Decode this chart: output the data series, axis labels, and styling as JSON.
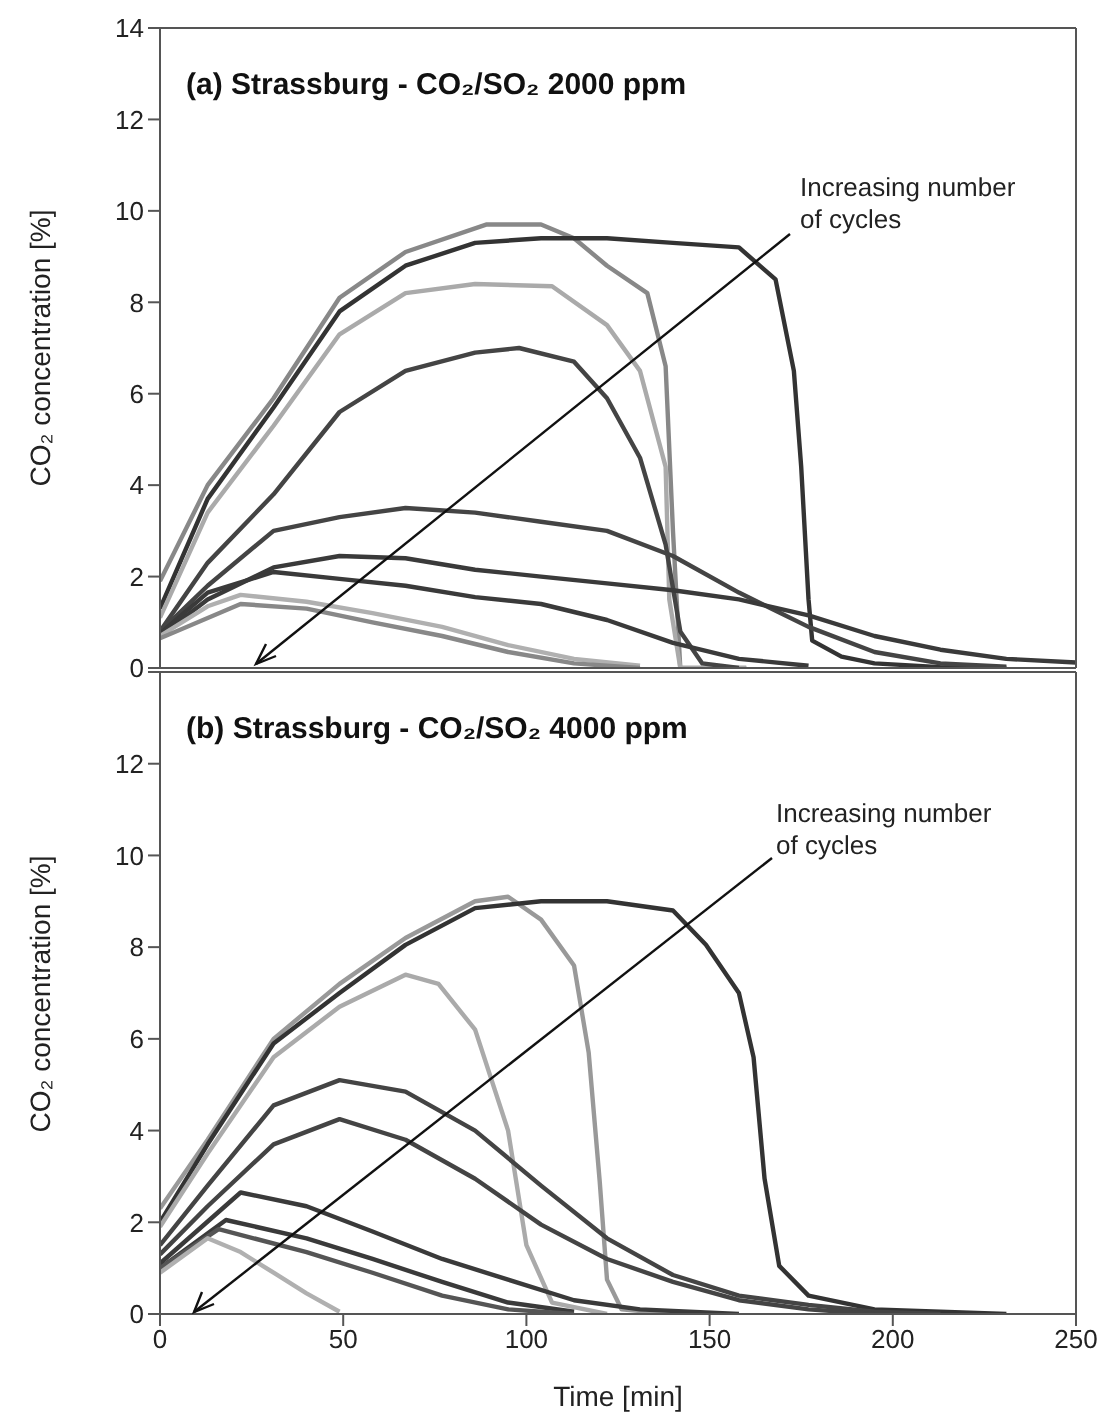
{
  "chart_data": [
    {
      "type": "line",
      "title": "(a) Strassburg - CO₂/SO₂ 2000 ppm",
      "ylabel": "CO₂ concentration [%]",
      "annotations": [
        "Increasing number of cycles"
      ],
      "xlim": [
        0,
        250
      ],
      "xticks": [
        0,
        50,
        100,
        150,
        200,
        250
      ],
      "ylim": [
        0,
        14
      ],
      "yticks": [
        0,
        2,
        4,
        6,
        8,
        10,
        12,
        14
      ],
      "tick_labels": "y",
      "marker": "none",
      "line_style": "solid",
      "series": [
        {
          "color": "#888888",
          "x": [
            0,
            13,
            31,
            49,
            67,
            89,
            104,
            113,
            122,
            133,
            138,
            140,
            142,
            160
          ],
          "values": [
            1.9,
            4,
            5.9,
            8.1,
            9.1,
            9.7,
            9.7,
            9.4,
            8.8,
            8.2,
            6.6,
            3,
            0,
            0
          ]
        },
        {
          "color": "#333333",
          "x": [
            0,
            13,
            31,
            49,
            67,
            86,
            104,
            122,
            140,
            158,
            168,
            173,
            175,
            177,
            178,
            186,
            195,
            213,
            231
          ],
          "values": [
            1.3,
            3.7,
            5.7,
            7.8,
            8.8,
            9.3,
            9.4,
            9.4,
            9.3,
            9.2,
            8.5,
            6.5,
            4.4,
            1.5,
            0.6,
            0.25,
            0.1,
            0.02,
            0
          ]
        },
        {
          "color": "#aaaaaa",
          "x": [
            0,
            13,
            31,
            49,
            67,
            86,
            107,
            122,
            131,
            138,
            139,
            142,
            160
          ],
          "values": [
            1.1,
            3.4,
            5.3,
            7.3,
            8.2,
            8.4,
            8.35,
            7.5,
            6.5,
            4.4,
            1.5,
            0,
            0
          ]
        },
        {
          "color": "#444444",
          "x": [
            0,
            13,
            31,
            49,
            67,
            86,
            98,
            113,
            122,
            131,
            138,
            142,
            148,
            158
          ],
          "values": [
            0.8,
            2.3,
            3.8,
            5.6,
            6.5,
            6.9,
            7,
            6.7,
            5.9,
            4.6,
            2.7,
            0.8,
            0.1,
            0
          ]
        },
        {
          "color": "#444444",
          "x": [
            0,
            13,
            31,
            49,
            67,
            86,
            104,
            122,
            140,
            158,
            177,
            195,
            213,
            231
          ],
          "values": [
            0.8,
            1.8,
            3,
            3.3,
            3.5,
            3.4,
            3.2,
            3,
            2.45,
            1.65,
            0.9,
            0.35,
            0.1,
            0.03
          ]
        },
        {
          "color": "#3a3a3a",
          "x": [
            0,
            13,
            31,
            49,
            67,
            86,
            104,
            122,
            140,
            158,
            177,
            195,
            213,
            231,
            250
          ],
          "values": [
            0.7,
            1.5,
            2.2,
            2.45,
            2.4,
            2.15,
            2,
            1.85,
            1.7,
            1.5,
            1.15,
            0.7,
            0.4,
            0.2,
            0.12
          ]
        },
        {
          "color": "#3a3a3a",
          "x": [
            0,
            13,
            31,
            49,
            67,
            86,
            104,
            122,
            140,
            158,
            177
          ],
          "values": [
            0.75,
            1.65,
            2.1,
            1.95,
            1.8,
            1.55,
            1.4,
            1.05,
            0.55,
            0.2,
            0.05
          ]
        },
        {
          "color": "#b0b0b0",
          "x": [
            0,
            13,
            22,
            40,
            58,
            77,
            95,
            113,
            131
          ],
          "values": [
            0.7,
            1.35,
            1.6,
            1.45,
            1.2,
            0.9,
            0.5,
            0.2,
            0.05
          ]
        },
        {
          "color": "#888888",
          "x": [
            0,
            22,
            40,
            58,
            77,
            95,
            113,
            131
          ],
          "values": [
            0.65,
            1.4,
            1.3,
            1,
            0.7,
            0.35,
            0.1,
            0
          ]
        }
      ]
    },
    {
      "type": "line",
      "title": "(b) Strassburg - CO₂/SO₂ 4000 ppm",
      "xlabel": "Time [min]",
      "ylabel": "CO₂ concentration [%]",
      "annotations": [
        "Increasing number of cycles"
      ],
      "xlim": [
        0,
        250
      ],
      "xticks": [
        0,
        50,
        100,
        150,
        200,
        250
      ],
      "ylim": [
        0,
        14
      ],
      "yticks": [
        0,
        2,
        4,
        6,
        8,
        10,
        12,
        {
          "value": 14,
          "label": null
        }
      ],
      "marker": "none",
      "line_style": "solid",
      "series": [
        {
          "color": "#999999",
          "x": [
            0,
            13,
            31,
            49,
            67,
            86,
            95,
            104,
            113,
            117,
            120,
            122,
            126,
            140
          ],
          "values": [
            2.3,
            3.8,
            6,
            7.2,
            8.2,
            9,
            9.1,
            8.6,
            7.6,
            5.7,
            2.9,
            0.75,
            0.1,
            0
          ]
        },
        {
          "color": "#333333",
          "x": [
            0,
            13,
            31,
            49,
            67,
            86,
            104,
            122,
            140,
            149,
            158,
            162,
            165,
            169,
            177,
            195,
            231
          ],
          "values": [
            2,
            3.7,
            5.9,
            7,
            8.05,
            8.85,
            9,
            9,
            8.8,
            8.05,
            7,
            5.6,
            2.95,
            1.05,
            0.4,
            0.1,
            0
          ]
        },
        {
          "color": "#aaaaaa",
          "x": [
            0,
            13,
            31,
            49,
            67,
            76,
            86,
            95,
            100,
            107,
            122
          ],
          "values": [
            1.9,
            3.5,
            5.6,
            6.7,
            7.4,
            7.2,
            6.2,
            4,
            1.5,
            0.25,
            0
          ]
        },
        {
          "color": "#444444",
          "x": [
            0,
            13,
            31,
            49,
            67,
            86,
            104,
            122,
            140,
            158,
            177,
            195,
            213
          ],
          "values": [
            1.5,
            2.8,
            4.55,
            5.1,
            4.85,
            4,
            2.8,
            1.65,
            0.85,
            0.4,
            0.2,
            0.05,
            0
          ]
        },
        {
          "color": "#444444",
          "x": [
            0,
            13,
            31,
            49,
            67,
            86,
            104,
            122,
            140,
            158,
            177,
            195
          ],
          "values": [
            1.3,
            2.35,
            3.7,
            4.25,
            3.8,
            2.95,
            1.95,
            1.2,
            0.7,
            0.3,
            0.1,
            0
          ]
        },
        {
          "color": "#3a3a3a",
          "x": [
            0,
            22,
            40,
            58,
            77,
            95,
            113,
            131,
            158
          ],
          "values": [
            1.1,
            2.65,
            2.35,
            1.8,
            1.2,
            0.75,
            0.3,
            0.1,
            0
          ]
        },
        {
          "color": "#3a3a3a",
          "x": [
            0,
            18,
            40,
            58,
            77,
            95,
            113
          ],
          "values": [
            1,
            2.05,
            1.65,
            1.2,
            0.7,
            0.25,
            0.05
          ]
        },
        {
          "color": "#555555",
          "x": [
            0,
            16,
            40,
            58,
            77,
            95,
            113
          ],
          "values": [
            1,
            1.85,
            1.35,
            0.9,
            0.4,
            0.1,
            0
          ]
        },
        {
          "color": "#b0b0b0",
          "x": [
            0,
            13,
            22,
            31,
            40,
            49
          ],
          "values": [
            0.9,
            1.65,
            1.35,
            0.9,
            0.45,
            0.05
          ]
        }
      ]
    }
  ]
}
